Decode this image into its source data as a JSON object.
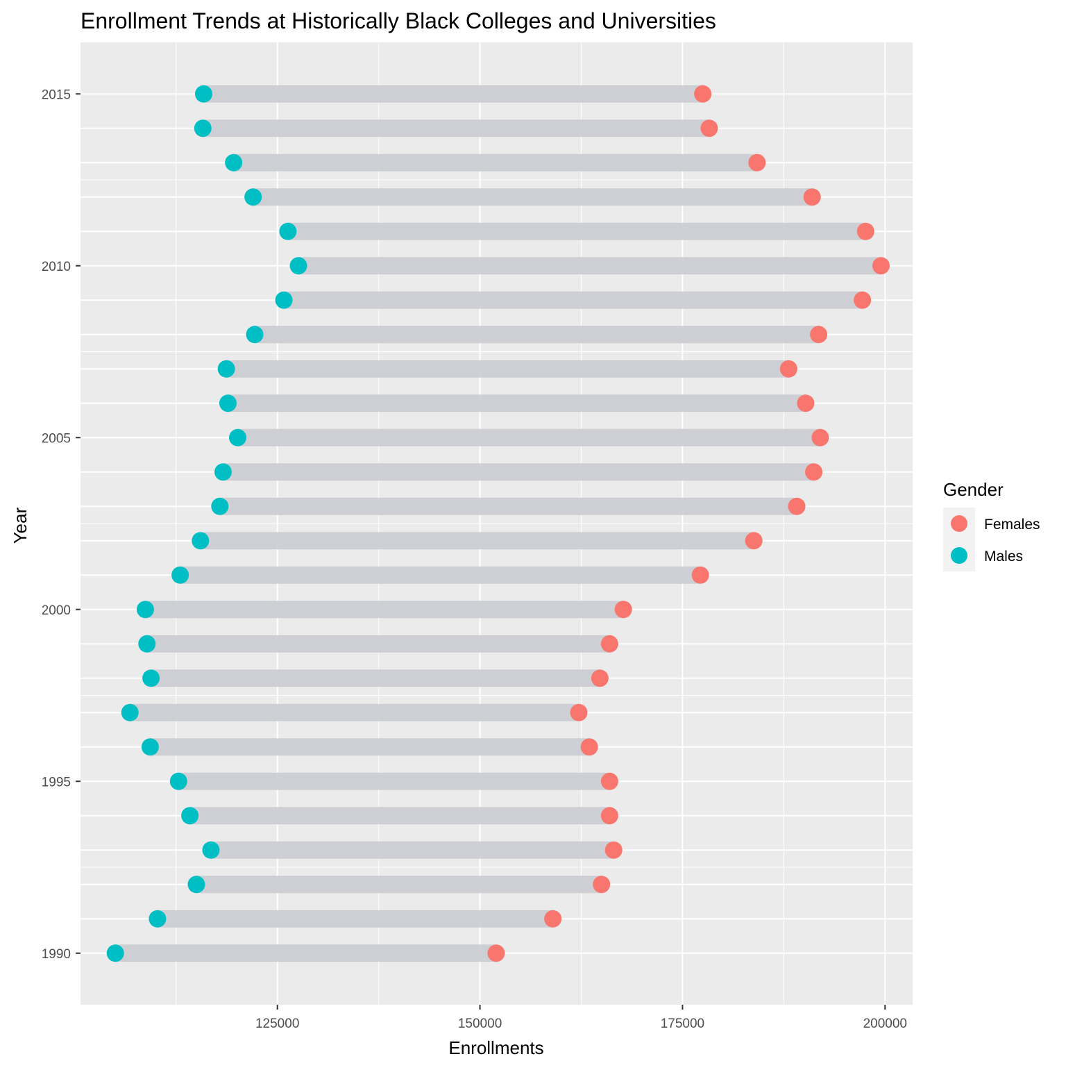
{
  "chart_data": {
    "type": "dumbbell",
    "title": "Enrollment Trends at Historically Black Colleges and Universities",
    "xlabel": "Enrollments",
    "ylabel": "Year",
    "xlim": [
      100700,
      203400
    ],
    "ylim": [
      1988.5,
      2016.5
    ],
    "x_ticks": [
      125000,
      150000,
      175000,
      200000
    ],
    "x_tick_labels": [
      "125000",
      "150000",
      "175000",
      "200000"
    ],
    "y_ticks": [
      1990,
      1995,
      2000,
      2005,
      2010,
      2015
    ],
    "y_tick_labels": [
      "1990",
      "1995",
      "2000",
      "2005",
      "2010",
      "2015"
    ],
    "grid": true,
    "legend": {
      "title": "Gender",
      "position": "right",
      "entries": [
        {
          "label": "Females",
          "color": "#F8766D"
        },
        {
          "label": "Males",
          "color": "#00BFC4"
        }
      ]
    },
    "colors": {
      "panel": "#EBEBEB",
      "grid": "#FFFFFF",
      "segment": "#CBCED3",
      "females": "#F8766D",
      "males": "#00BFC4"
    },
    "years": [
      1990,
      1991,
      1992,
      1993,
      1994,
      1995,
      1996,
      1997,
      1998,
      1999,
      2000,
      2001,
      2002,
      2003,
      2004,
      2005,
      2006,
      2007,
      2008,
      2009,
      2010,
      2011,
      2012,
      2013,
      2014,
      2015
    ],
    "series": [
      {
        "name": "Females",
        "values": [
          152000,
          159000,
          165000,
          166500,
          166000,
          166000,
          163500,
          162200,
          164800,
          166000,
          167700,
          177200,
          183800,
          189100,
          191200,
          192000,
          190200,
          188100,
          191800,
          197200,
          199500,
          197600,
          191000,
          184200,
          178300,
          177500
        ]
      },
      {
        "name": "Males",
        "values": [
          105000,
          110200,
          115000,
          116800,
          114200,
          112800,
          109300,
          106800,
          109400,
          108900,
          108700,
          113000,
          115500,
          117900,
          118300,
          120100,
          118900,
          118700,
          122200,
          125800,
          127600,
          126300,
          122000,
          119600,
          115800,
          115900
        ]
      }
    ]
  }
}
